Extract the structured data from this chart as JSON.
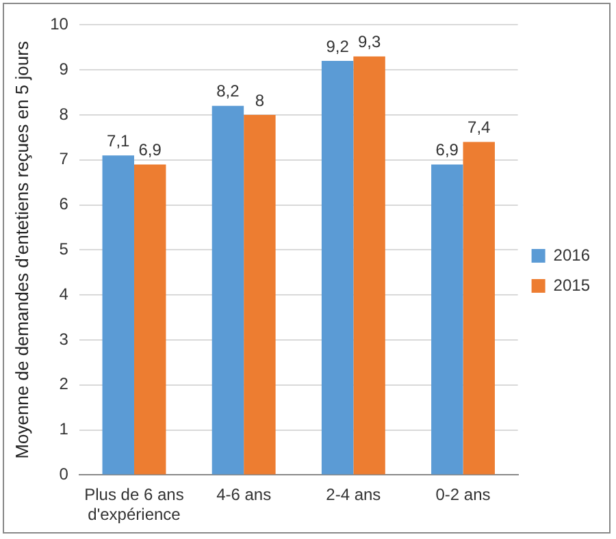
{
  "chart_data": {
    "type": "bar",
    "ylabel": "Moyenne de demandes d'entetiens reçues en 5 jours",
    "categories": [
      "Plus de 6 ans d'expérience",
      "4-6 ans",
      "2-4 ans",
      "0-2 ans"
    ],
    "series": [
      {
        "name": "2016",
        "color": "#5b9bd5",
        "values": [
          7.1,
          8.2,
          9.2,
          6.9
        ],
        "value_labels": [
          "7,1",
          "8,2",
          "9,2",
          "6,9"
        ]
      },
      {
        "name": "2015",
        "color": "#ed7d31",
        "values": [
          6.9,
          8,
          9.3,
          7.4
        ],
        "value_labels": [
          "6,9",
          "8",
          "9,3",
          "7,4"
        ]
      }
    ],
    "ylim": [
      0,
      10
    ],
    "yticks": [
      0,
      1,
      2,
      3,
      4,
      5,
      6,
      7,
      8,
      9,
      10
    ],
    "grid": "y",
    "legend": "right"
  }
}
